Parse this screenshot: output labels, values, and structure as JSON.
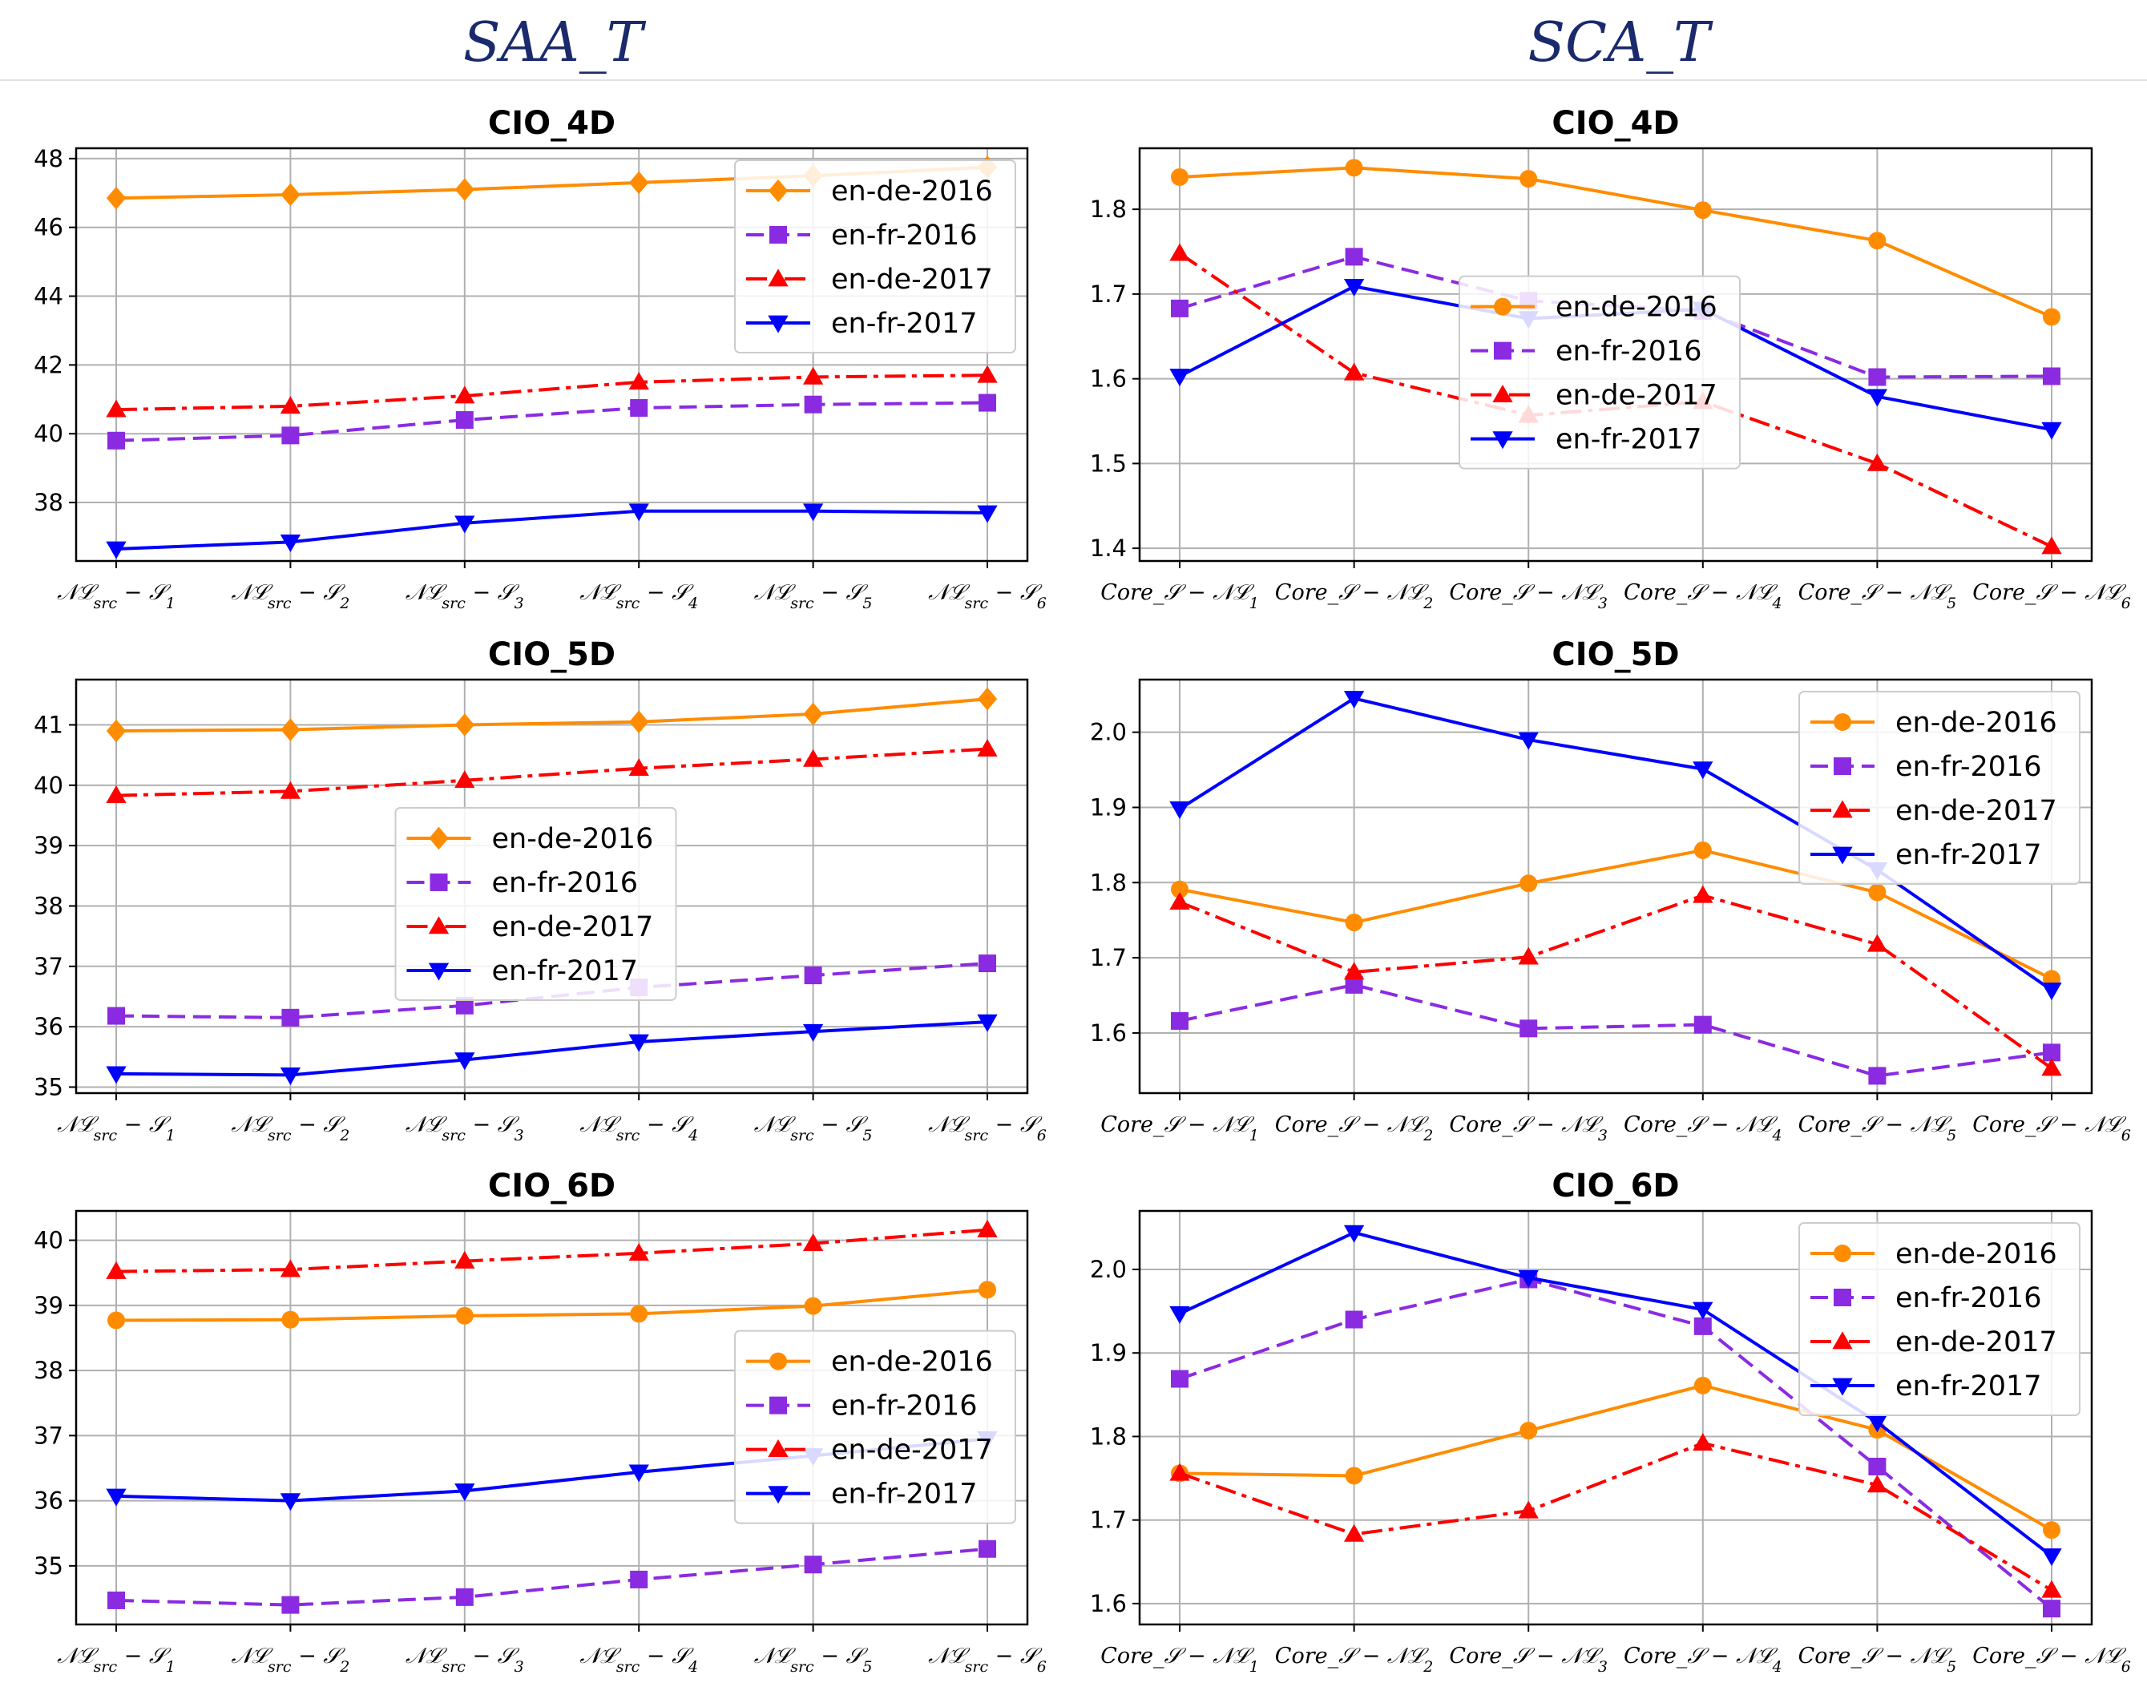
{
  "column_titles": [
    "SAA_T",
    "SCA_T"
  ],
  "chart_data": [
    {
      "type": "line",
      "title": "CIO_4D",
      "column": 0,
      "row": 0,
      "categories": [
        "𝒩ℒsrc − 𝒮1",
        "𝒩ℒsrc − 𝒮2",
        "𝒩ℒsrc − 𝒮3",
        "𝒩ℒsrc − 𝒮4",
        "𝒩ℒsrc − 𝒮5",
        "𝒩ℒsrc − 𝒮6"
      ],
      "ylim": [
        36.3,
        48.3
      ],
      "yticks": [
        38,
        40,
        42,
        44,
        46,
        48
      ],
      "ydecimals": 0,
      "grid": true,
      "legend_position": "upper-right",
      "series": [
        {
          "name": "en-de-2016",
          "color": "#ff8c00",
          "marker": "diamond",
          "dash": "solid",
          "values": [
            46.85,
            46.95,
            47.1,
            47.3,
            47.5,
            47.75
          ]
        },
        {
          "name": "en-fr-2016",
          "color": "#8a2be2",
          "marker": "square",
          "dash": "dashed",
          "values": [
            39.8,
            39.95,
            40.4,
            40.75,
            40.85,
            40.9
          ]
        },
        {
          "name": "en-de-2017",
          "color": "#ff0000",
          "marker": "triangle-up",
          "dash": "dashdot",
          "values": [
            40.7,
            40.8,
            41.1,
            41.5,
            41.65,
            41.7
          ]
        },
        {
          "name": "en-fr-2017",
          "color": "#0000ff",
          "marker": "triangle-down",
          "dash": "solid",
          "values": [
            36.65,
            36.85,
            37.4,
            37.75,
            37.75,
            37.7
          ]
        }
      ]
    },
    {
      "type": "line",
      "title": "CIO_4D",
      "column": 1,
      "row": 0,
      "categories": [
        "Core_𝒮 − 𝒩ℒ1",
        "Core_𝒮 − 𝒩ℒ2",
        "Core_𝒮 − 𝒩ℒ3",
        "Core_𝒮 − 𝒩ℒ4",
        "Core_𝒮 − 𝒩ℒ5",
        "Core_𝒮 − 𝒩ℒ6"
      ],
      "ylim": [
        1.385,
        1.872
      ],
      "yticks": [
        1.4,
        1.5,
        1.6,
        1.7,
        1.8
      ],
      "ydecimals": 1,
      "grid": true,
      "legend_position": "center",
      "series": [
        {
          "name": "en-de-2016",
          "color": "#ff8c00",
          "marker": "circle",
          "dash": "solid",
          "values": [
            1.838,
            1.849,
            1.836,
            1.799,
            1.763,
            1.673
          ]
        },
        {
          "name": "en-fr-2016",
          "color": "#8a2be2",
          "marker": "square",
          "dash": "dashed",
          "values": [
            1.683,
            1.744,
            1.692,
            1.68,
            1.602,
            1.603
          ]
        },
        {
          "name": "en-de-2017",
          "color": "#ff0000",
          "marker": "triangle-up",
          "dash": "dashdot",
          "values": [
            1.748,
            1.607,
            1.557,
            1.573,
            1.5,
            1.402
          ]
        },
        {
          "name": "en-fr-2017",
          "color": "#0000ff",
          "marker": "triangle-down",
          "dash": "solid",
          "values": [
            1.603,
            1.709,
            1.671,
            1.682,
            1.579,
            1.54
          ]
        }
      ]
    },
    {
      "type": "line",
      "title": "CIO_5D",
      "column": 0,
      "row": 1,
      "categories": [
        "𝒩ℒsrc − 𝒮1",
        "𝒩ℒsrc − 𝒮2",
        "𝒩ℒsrc − 𝒮3",
        "𝒩ℒsrc − 𝒮4",
        "𝒩ℒsrc − 𝒮5",
        "𝒩ℒsrc − 𝒮6"
      ],
      "ylim": [
        34.9,
        41.75
      ],
      "yticks": [
        35,
        36,
        37,
        38,
        39,
        40,
        41
      ],
      "ydecimals": 0,
      "grid": true,
      "legend_position": "center",
      "series": [
        {
          "name": "en-de-2016",
          "color": "#ff8c00",
          "marker": "diamond",
          "dash": "solid",
          "values": [
            40.9,
            40.92,
            41.0,
            41.05,
            41.18,
            41.43
          ]
        },
        {
          "name": "en-fr-2016",
          "color": "#8a2be2",
          "marker": "square",
          "dash": "dashed",
          "values": [
            36.18,
            36.15,
            36.35,
            36.65,
            36.85,
            37.05
          ]
        },
        {
          "name": "en-de-2017",
          "color": "#ff0000",
          "marker": "triangle-up",
          "dash": "dashdot",
          "values": [
            39.83,
            39.9,
            40.08,
            40.28,
            40.43,
            40.6
          ]
        },
        {
          "name": "en-fr-2017",
          "color": "#0000ff",
          "marker": "triangle-down",
          "dash": "solid",
          "values": [
            35.22,
            35.2,
            35.45,
            35.75,
            35.92,
            36.08
          ]
        }
      ]
    },
    {
      "type": "line",
      "title": "CIO_5D",
      "column": 1,
      "row": 1,
      "categories": [
        "Core_𝒮 − 𝒩ℒ1",
        "Core_𝒮 − 𝒩ℒ2",
        "Core_𝒮 − 𝒩ℒ3",
        "Core_𝒮 − 𝒩ℒ4",
        "Core_𝒮 − 𝒩ℒ5",
        "Core_𝒮 − 𝒩ℒ6"
      ],
      "ylim": [
        1.52,
        2.07
      ],
      "yticks": [
        1.6,
        1.7,
        1.8,
        1.9,
        2.0
      ],
      "ydecimals": 1,
      "grid": true,
      "legend_position": "upper-right",
      "series": [
        {
          "name": "en-de-2016",
          "color": "#ff8c00",
          "marker": "circle",
          "dash": "solid",
          "values": [
            1.791,
            1.747,
            1.799,
            1.843,
            1.787,
            1.672
          ]
        },
        {
          "name": "en-fr-2016",
          "color": "#8a2be2",
          "marker": "square",
          "dash": "dashed",
          "values": [
            1.616,
            1.664,
            1.606,
            1.611,
            1.543,
            1.574
          ]
        },
        {
          "name": "en-de-2017",
          "color": "#ff0000",
          "marker": "triangle-up",
          "dash": "dashdot",
          "values": [
            1.774,
            1.681,
            1.701,
            1.783,
            1.718,
            1.553
          ]
        },
        {
          "name": "en-fr-2017",
          "color": "#0000ff",
          "marker": "triangle-down",
          "dash": "solid",
          "values": [
            1.898,
            2.045,
            1.99,
            1.951,
            1.817,
            1.657
          ]
        }
      ]
    },
    {
      "type": "line",
      "title": "CIO_6D",
      "column": 0,
      "row": 2,
      "categories": [
        "𝒩ℒsrc − 𝒮1",
        "𝒩ℒsrc − 𝒮2",
        "𝒩ℒsrc − 𝒮3",
        "𝒩ℒsrc − 𝒮4",
        "𝒩ℒsrc − 𝒮5",
        "𝒩ℒsrc − 𝒮6"
      ],
      "ylim": [
        34.1,
        40.45
      ],
      "yticks": [
        35,
        36,
        37,
        38,
        39,
        40
      ],
      "ydecimals": 0,
      "grid": true,
      "legend_position": "right",
      "series": [
        {
          "name": "en-de-2016",
          "color": "#ff8c00",
          "marker": "circle",
          "dash": "solid",
          "values": [
            38.77,
            38.78,
            38.84,
            38.87,
            38.99,
            39.24
          ]
        },
        {
          "name": "en-fr-2016",
          "color": "#8a2be2",
          "marker": "square",
          "dash": "dashed",
          "values": [
            34.47,
            34.4,
            34.52,
            34.79,
            35.02,
            35.26
          ]
        },
        {
          "name": "en-de-2017",
          "color": "#ff0000",
          "marker": "triangle-up",
          "dash": "dashdot",
          "values": [
            39.52,
            39.55,
            39.68,
            39.8,
            39.95,
            40.16
          ]
        },
        {
          "name": "en-fr-2017",
          "color": "#0000ff",
          "marker": "triangle-down",
          "dash": "solid",
          "values": [
            36.07,
            36.0,
            36.15,
            36.44,
            36.69,
            36.95
          ]
        }
      ]
    },
    {
      "type": "line",
      "title": "CIO_6D",
      "column": 1,
      "row": 2,
      "categories": [
        "Core_𝒮 − 𝒩ℒ1",
        "Core_𝒮 − 𝒩ℒ2",
        "Core_𝒮 − 𝒩ℒ3",
        "Core_𝒮 − 𝒩ℒ4",
        "Core_𝒮 − 𝒩ℒ5",
        "Core_𝒮 − 𝒩ℒ6"
      ],
      "ylim": [
        1.575,
        2.07
      ],
      "yticks": [
        1.6,
        1.7,
        1.8,
        1.9,
        2.0
      ],
      "ydecimals": 1,
      "grid": true,
      "legend_position": "upper-right",
      "series": [
        {
          "name": "en-de-2016",
          "color": "#ff8c00",
          "marker": "circle",
          "dash": "solid",
          "values": [
            1.756,
            1.753,
            1.807,
            1.861,
            1.808,
            1.688
          ]
        },
        {
          "name": "en-fr-2016",
          "color": "#8a2be2",
          "marker": "square",
          "dash": "dashed",
          "values": [
            1.869,
            1.94,
            1.988,
            1.932,
            1.764,
            1.594
          ]
        },
        {
          "name": "en-de-2017",
          "color": "#ff0000",
          "marker": "triangle-up",
          "dash": "dashdot",
          "values": [
            1.756,
            1.683,
            1.711,
            1.792,
            1.742,
            1.616
          ]
        },
        {
          "name": "en-fr-2017",
          "color": "#0000ff",
          "marker": "triangle-down",
          "dash": "solid",
          "values": [
            1.947,
            2.044,
            1.99,
            1.952,
            1.817,
            1.657
          ]
        }
      ]
    }
  ]
}
